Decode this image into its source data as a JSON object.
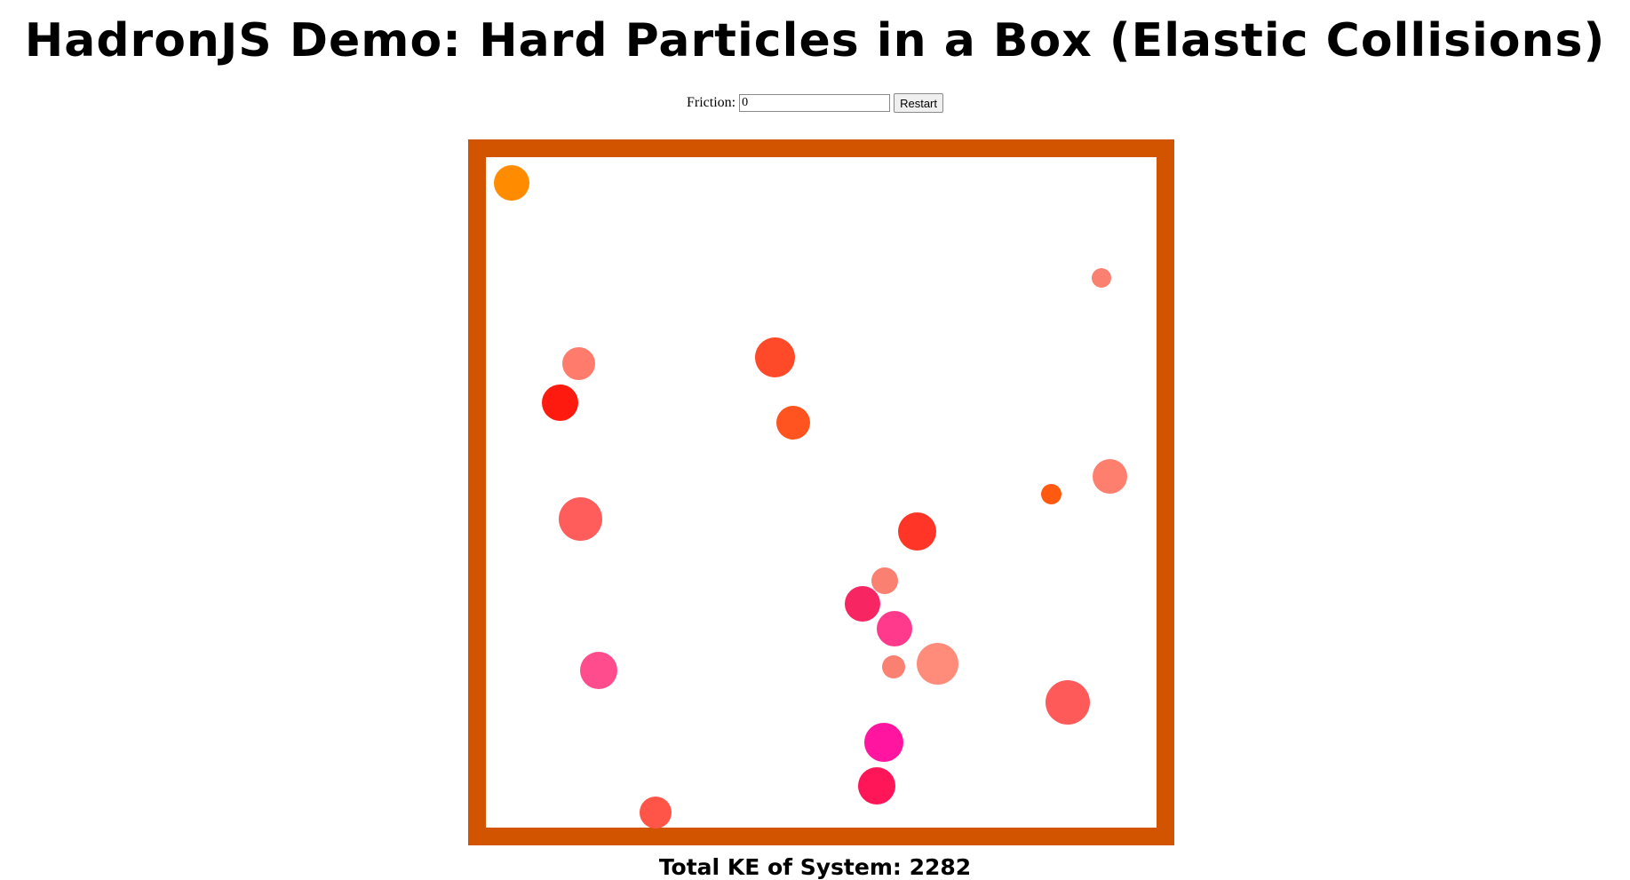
{
  "page": {
    "title": "HadronJS Demo: Hard Particles in a Box (Elastic Collisions)"
  },
  "controls": {
    "friction_label": "Friction:",
    "friction_value": "0",
    "restart_label": "Restart"
  },
  "box": {
    "border_color": "#d35400"
  },
  "particles": [
    {
      "color": "#ff8c00"
    },
    {
      "color": "#fa8072"
    },
    {
      "color": "#ff7b6b"
    },
    {
      "color": "#ff1a10"
    },
    {
      "color": "#ff4a2a"
    },
    {
      "color": "#ff5420"
    },
    {
      "color": "#ff5a10"
    },
    {
      "color": "#ff7f6f"
    },
    {
      "color": "#ff5c5c"
    },
    {
      "color": "#ff3528"
    },
    {
      "color": "#fa8072"
    },
    {
      "color": "#f72562"
    },
    {
      "color": "#ff3a8c"
    },
    {
      "color": "#ff8b7b"
    },
    {
      "color": "#fa8072"
    },
    {
      "color": "#ff4c8c"
    },
    {
      "color": "#ff5a5a"
    },
    {
      "color": "#ff15a0"
    },
    {
      "color": "#ff1658"
    },
    {
      "color": "#ff5548"
    }
  ],
  "status": {
    "ke_label": "Total KE of System: 2282"
  }
}
